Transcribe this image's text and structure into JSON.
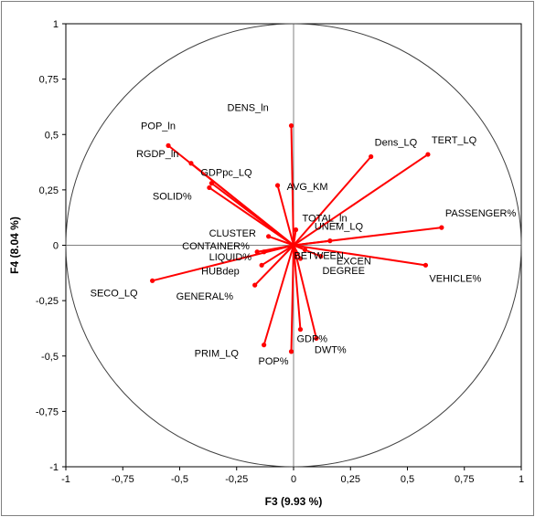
{
  "chart_data": {
    "type": "scatter",
    "subtype": "correlation-circle",
    "title": "",
    "xlabel": "F3 (9.93 %)",
    "ylabel": "F4 (8.04 %)",
    "xlim": [
      -1,
      1
    ],
    "ylim": [
      -1,
      1
    ],
    "x_ticks": [
      "-1",
      "-0,75",
      "-0,5",
      "-0,25",
      "0",
      "0,25",
      "0,5",
      "0,75",
      "1"
    ],
    "y_ticks": [
      "1",
      "0,75",
      "0,5",
      "0,25",
      "0",
      "-0,25",
      "-0,5",
      "-0,75",
      "-1"
    ],
    "grid": false,
    "line_color": "#ff0000",
    "circle_color": "#404040",
    "points": [
      {
        "label": "POP_ln",
        "x": -0.55,
        "y": 0.45
      },
      {
        "label": "RGDP_ln",
        "x": -0.45,
        "y": 0.37
      },
      {
        "label": "SOLID%",
        "x": -0.37,
        "y": 0.26
      },
      {
        "label": "GDPpc_LQ",
        "x": -0.36,
        "y": 0.28
      },
      {
        "label": "DENS_ln",
        "x": -0.01,
        "y": 0.54
      },
      {
        "label": "Dens_LQ",
        "x": 0.34,
        "y": 0.4
      },
      {
        "label": "TERT_LQ",
        "x": 0.59,
        "y": 0.41
      },
      {
        "label": "PASSENGER%",
        "x": 0.65,
        "y": 0.08
      },
      {
        "label": "AVG_KM",
        "x": -0.07,
        "y": 0.27
      },
      {
        "label": "CLUSTER",
        "x": -0.11,
        "y": 0.04
      },
      {
        "label": "TOTAL_ln",
        "x": 0.01,
        "y": 0.07
      },
      {
        "label": "UNEM_LQ",
        "x": 0.16,
        "y": 0.02
      },
      {
        "label": "CONTAINER%",
        "x": -0.16,
        "y": -0.03
      },
      {
        "label": "LIQUID%",
        "x": -0.13,
        "y": -0.03
      },
      {
        "label": "HUBdep",
        "x": -0.14,
        "y": -0.09
      },
      {
        "label": "SECO_LQ",
        "x": -0.62,
        "y": -0.16
      },
      {
        "label": "GENERAL%",
        "x": -0.17,
        "y": -0.18
      },
      {
        "label": "BETWEEN",
        "x": 0.05,
        "y": -0.02
      },
      {
        "label": "EXCEN",
        "x": 0.12,
        "y": -0.05
      },
      {
        "label": "DEGREE",
        "x": 0.03,
        "y": -0.06
      },
      {
        "label": "VEHICLE%",
        "x": 0.58,
        "y": -0.09
      },
      {
        "label": "GDP%",
        "x": 0.03,
        "y": -0.38
      },
      {
        "label": "DWT%",
        "x": 0.1,
        "y": -0.42
      },
      {
        "label": "PRIM_LQ",
        "x": -0.13,
        "y": -0.45
      },
      {
        "label": "POP%",
        "x": -0.01,
        "y": -0.48
      }
    ]
  }
}
